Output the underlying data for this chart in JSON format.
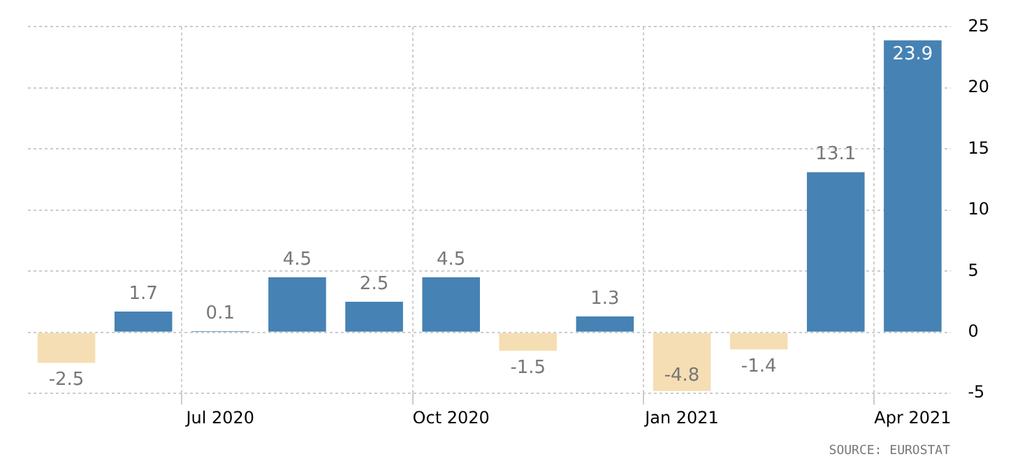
{
  "chart_data": {
    "type": "bar",
    "categories": [
      null,
      null,
      "Jul 2020",
      null,
      null,
      "Oct 2020",
      null,
      null,
      "Jan 2021",
      null,
      null,
      "Apr 2021"
    ],
    "values": [
      -2.5,
      1.7,
      0.1,
      4.5,
      2.5,
      4.5,
      -1.5,
      1.3,
      -4.8,
      -1.4,
      13.1,
      23.9
    ],
    "colors": [
      "#f5deb3",
      "#4682b4",
      "#4682b4",
      "#4682b4",
      "#4682b4",
      "#4682b4",
      "#f5deb3",
      "#4682b4",
      "#f5deb3",
      "#f5deb3",
      "#4682b4",
      "#4682b4"
    ],
    "ylim": [
      -5,
      25
    ],
    "yticks": [
      -5,
      0,
      5,
      10,
      15,
      20,
      25
    ],
    "grid": true,
    "data_labels": true,
    "annotations": [
      "SOURCE: EUROSTAT"
    ]
  }
}
